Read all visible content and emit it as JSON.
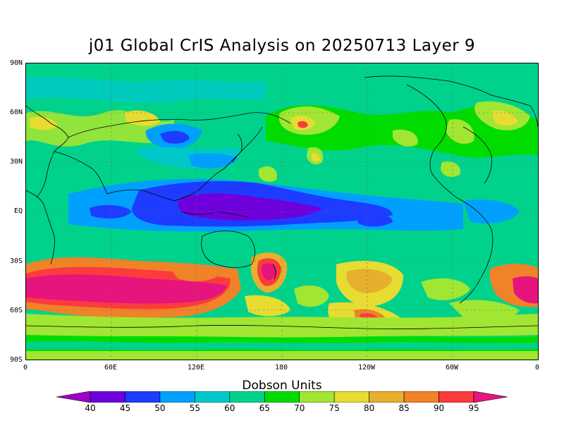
{
  "title": "j01 Global CrIS Analysis on 20250713 Layer 9",
  "colorbar": {
    "title": "Dobson Units",
    "levels": [
      40,
      45,
      50,
      55,
      60,
      65,
      70,
      75,
      80,
      85,
      90,
      95
    ],
    "colors": [
      "#a000c8",
      "#6e00dc",
      "#1e3cff",
      "#00a0ff",
      "#00c8c8",
      "#00d28c",
      "#00dc00",
      "#a0e632",
      "#e6dc32",
      "#e6af2d",
      "#f08228",
      "#fa3c3c",
      "#e6147d"
    ]
  },
  "axes": {
    "lat_labels": [
      "90N",
      "60N",
      "30N",
      "EQ",
      "30S",
      "60S",
      "90S"
    ],
    "lon_labels": [
      "0",
      "60E",
      "120E",
      "180",
      "120W",
      "60W",
      "0"
    ]
  },
  "chart_data": {
    "type": "heatmap",
    "title": "j01 Global CrIS Analysis on 20250713 Layer 9",
    "xlabel": "",
    "ylabel": "",
    "x_range": [
      0,
      360
    ],
    "y_range": [
      -90,
      90
    ],
    "units": "Dobson Units",
    "grid": true,
    "regions": [
      {
        "name": "background",
        "lon": [
          0,
          360
        ],
        "lat": [
          -90,
          90
        ],
        "value": 67
      },
      {
        "name": "tropical-low",
        "lon": [
          20,
          300
        ],
        "lat": [
          -18,
          18
        ],
        "value": 52
      },
      {
        "name": "warm-pool-core",
        "lon": [
          80,
          240
        ],
        "lat": [
          -12,
          12
        ],
        "value": 46
      },
      {
        "name": "southern-high-belt",
        "lon": [
          0,
          150
        ],
        "lat": [
          -63,
          -32
        ],
        "value": 92
      },
      {
        "name": "southern-high-west-atlantic",
        "lon": [
          315,
          360
        ],
        "lat": [
          -56,
          -38
        ],
        "value": 92
      },
      {
        "name": "nz-high",
        "lon": [
          165,
          180
        ],
        "lat": [
          -48,
          -30
        ],
        "value": 90
      },
      {
        "name": "s-pacific-high",
        "lon": [
          235,
          250
        ],
        "lat": [
          -68,
          -60
        ],
        "value": 88
      },
      {
        "name": "n-pacific-spot",
        "lon": [
          180,
          200
        ],
        "lat": [
          46,
          54
        ],
        "value": 90
      },
      {
        "name": "n-atlantic-high",
        "lon": [
          320,
          350
        ],
        "lat": [
          40,
          62
        ],
        "value": 82
      },
      {
        "name": "polar-south",
        "lon": [
          0,
          360
        ],
        "lat": [
          -90,
          -72
        ],
        "value": 70
      }
    ]
  }
}
